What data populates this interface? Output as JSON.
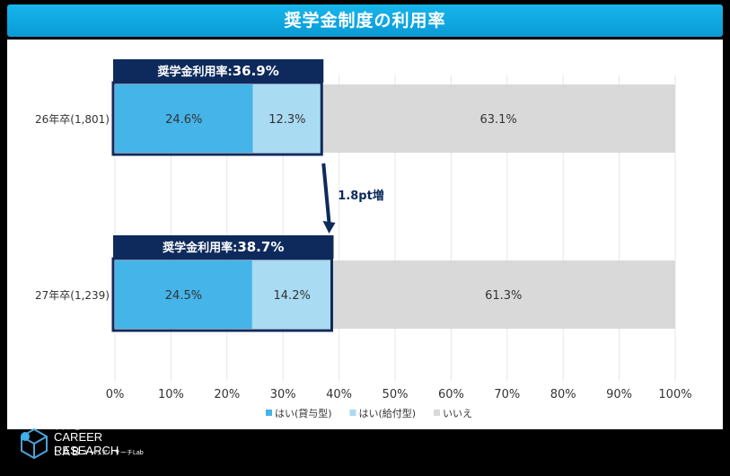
{
  "title": "奨学金制度の利用率",
  "chart_data": {
    "type": "bar",
    "orientation": "horizontal",
    "stacked": true,
    "categories": [
      "26年卒(1,801)",
      "27年卒(1,239)"
    ],
    "series": [
      {
        "name": "はい(貸与型)",
        "values": [
          24.6,
          24.5
        ],
        "color": "#45b4e8"
      },
      {
        "name": "はい(給付型)",
        "values": [
          12.3,
          14.2
        ],
        "color": "#a9dbf2"
      },
      {
        "name": "いいえ",
        "values": [
          63.1,
          61.3
        ],
        "color": "#d9d9d9"
      }
    ],
    "data_labels": [
      [
        "24.6%",
        "12.3%",
        "63.1%"
      ],
      [
        "24.5%",
        "14.2%",
        "61.3%"
      ]
    ],
    "xlim": [
      0,
      100
    ],
    "x_ticks": [
      "0%",
      "10%",
      "20%",
      "30%",
      "40%",
      "50%",
      "60%",
      "70%",
      "80%",
      "90%",
      "100%"
    ],
    "legend_position": "bottom",
    "callouts": [
      {
        "label": "奨学金利用率:",
        "value": "36.9%",
        "total": 36.9
      },
      {
        "label": "奨学金利用率:",
        "value": "38.7%",
        "total": 38.7
      }
    ],
    "annotation": "1.8pt増",
    "colors": {
      "callout_bg": "#0e2a5c",
      "outline": "#0e2a5c"
    }
  },
  "footer": {
    "brand_top": "マイナビ",
    "brand_main": "CAREER RESEARCH",
    "brand_lab": "LAB",
    "brand_sub": "キャリアリサーチLab"
  }
}
